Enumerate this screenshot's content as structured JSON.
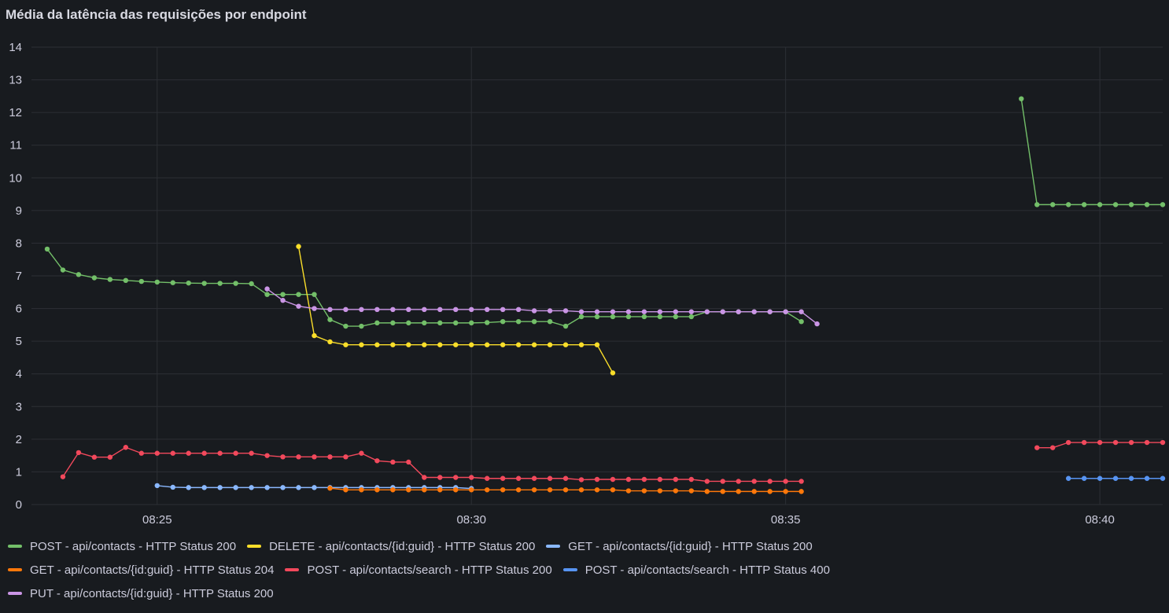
{
  "panel": {
    "title": "Média da latência das requisições por endpoint"
  },
  "chart_data": {
    "type": "line",
    "title": "Média da latência das requisições por endpoint",
    "xlabel": "",
    "ylabel": "",
    "x_unit": "minutes",
    "xlim": [
      "08:23:00",
      "08:41:00"
    ],
    "ylim": [
      0,
      14
    ],
    "x_ticks": [
      "08:25",
      "08:30",
      "08:35",
      "08:40"
    ],
    "y_ticks": [
      0,
      1,
      2,
      3,
      4,
      5,
      6,
      7,
      8,
      9,
      10,
      11,
      12,
      13,
      14
    ],
    "grid": true,
    "legend_position": "bottom",
    "series": [
      {
        "name": "POST - api/contacts - HTTP Status 200",
        "color": "#73bf69",
        "x": [
          "08:23:15",
          "08:23:30",
          "08:23:45",
          "08:24:00",
          "08:24:15",
          "08:24:30",
          "08:24:45",
          "08:25:00",
          "08:25:15",
          "08:25:30",
          "08:25:45",
          "08:26:00",
          "08:26:15",
          "08:26:30",
          "08:26:45",
          "08:27:00",
          "08:27:15",
          "08:27:30",
          "08:27:45",
          "08:28:00",
          "08:28:15",
          "08:28:30",
          "08:28:45",
          "08:29:00",
          "08:29:15",
          "08:29:30",
          "08:29:45",
          "08:30:00",
          "08:30:15",
          "08:30:30",
          "08:30:45",
          "08:31:00",
          "08:31:15",
          "08:31:30",
          "08:31:45",
          "08:32:00",
          "08:32:15",
          "08:32:30",
          "08:32:45",
          "08:33:00",
          "08:33:15",
          "08:33:30",
          "08:33:45",
          "08:34:00",
          "08:34:15",
          "08:34:30",
          "08:34:45",
          "08:35:00",
          "08:35:15",
          null,
          "08:38:45",
          "08:39:00",
          "08:39:15",
          "08:39:30",
          "08:39:45",
          "08:40:00",
          "08:40:15",
          "08:40:30",
          "08:40:45",
          "08:41:00"
        ],
        "y": [
          7.82,
          7.18,
          7.04,
          6.94,
          6.89,
          6.86,
          6.83,
          6.81,
          6.79,
          6.78,
          6.77,
          6.77,
          6.77,
          6.76,
          6.43,
          6.43,
          6.43,
          6.43,
          5.66,
          5.46,
          5.46,
          5.56,
          5.56,
          5.56,
          5.56,
          5.56,
          5.56,
          5.56,
          5.57,
          5.6,
          5.6,
          5.6,
          5.6,
          5.46,
          5.75,
          5.75,
          5.75,
          5.75,
          5.75,
          5.75,
          5.75,
          5.75,
          5.9,
          5.9,
          5.9,
          5.9,
          5.9,
          5.9,
          5.6,
          null,
          12.42,
          9.18,
          9.18,
          9.18,
          9.18,
          9.18,
          9.18,
          9.18,
          9.18,
          9.18
        ]
      },
      {
        "name": "DELETE - api/contacts/{id:guid} - HTTP Status 200",
        "color": "#fade2a",
        "x": [
          "08:27:15",
          "08:27:30",
          "08:27:45",
          "08:28:00",
          "08:28:15",
          "08:28:30",
          "08:28:45",
          "08:29:00",
          "08:29:15",
          "08:29:30",
          "08:29:45",
          "08:30:00",
          "08:30:15",
          "08:30:30",
          "08:30:45",
          "08:31:00",
          "08:31:15",
          "08:31:30",
          "08:31:45",
          "08:32:00",
          "08:32:15"
        ],
        "y": [
          7.9,
          5.17,
          4.98,
          4.89,
          4.89,
          4.89,
          4.89,
          4.89,
          4.89,
          4.89,
          4.89,
          4.89,
          4.89,
          4.89,
          4.89,
          4.89,
          4.89,
          4.89,
          4.89,
          4.89,
          4.03
        ]
      },
      {
        "name": "GET - api/contacts/{id:guid} - HTTP Status 200",
        "color": "#8ab8ff",
        "x": [
          "08:25:00",
          "08:25:15",
          "08:25:30",
          "08:25:45",
          "08:26:00",
          "08:26:15",
          "08:26:30",
          "08:26:45",
          "08:27:00",
          "08:27:15",
          "08:27:30",
          "08:27:45",
          "08:28:00",
          "08:28:15",
          "08:28:30",
          "08:28:45",
          "08:29:00",
          "08:29:15",
          "08:29:30",
          "08:29:45",
          "08:30:00"
        ],
        "y": [
          0.58,
          0.53,
          0.52,
          0.52,
          0.52,
          0.52,
          0.52,
          0.52,
          0.52,
          0.52,
          0.52,
          0.52,
          0.52,
          0.52,
          0.52,
          0.52,
          0.52,
          0.52,
          0.52,
          0.52,
          0.49
        ]
      },
      {
        "name": "GET - api/contacts/{id:guid} - HTTP Status 204",
        "color": "#ff780a",
        "x": [
          "08:27:45",
          "08:28:00",
          "08:28:15",
          "08:28:30",
          "08:28:45",
          "08:29:00",
          "08:29:15",
          "08:29:30",
          "08:29:45",
          "08:30:00",
          "08:30:15",
          "08:30:30",
          "08:30:45",
          "08:31:00",
          "08:31:15",
          "08:31:30",
          "08:31:45",
          "08:32:00",
          "08:32:15",
          "08:32:30",
          "08:32:45",
          "08:33:00",
          "08:33:15",
          "08:33:30",
          "08:33:45",
          "08:34:00",
          "08:34:15",
          "08:34:30",
          "08:34:45",
          "08:35:00",
          "08:35:15"
        ],
        "y": [
          0.5,
          0.45,
          0.45,
          0.45,
          0.45,
          0.45,
          0.45,
          0.45,
          0.45,
          0.45,
          0.45,
          0.45,
          0.45,
          0.45,
          0.45,
          0.45,
          0.45,
          0.45,
          0.45,
          0.42,
          0.42,
          0.42,
          0.42,
          0.42,
          0.4,
          0.4,
          0.4,
          0.4,
          0.4,
          0.4,
          0.4
        ]
      },
      {
        "name": "POST - api/contacts/search - HTTP Status 200",
        "color": "#f2495c",
        "x": [
          "08:23:30",
          "08:23:45",
          "08:24:00",
          "08:24:15",
          "08:24:30",
          "08:24:45",
          "08:25:00",
          "08:25:15",
          "08:25:30",
          "08:25:45",
          "08:26:00",
          "08:26:15",
          "08:26:30",
          "08:26:45",
          "08:27:00",
          "08:27:15",
          "08:27:30",
          "08:27:45",
          "08:28:00",
          "08:28:15",
          "08:28:30",
          "08:28:45",
          "08:29:00",
          "08:29:15",
          "08:29:30",
          "08:29:45",
          "08:30:00",
          "08:30:15",
          "08:30:30",
          "08:30:45",
          "08:31:00",
          "08:31:15",
          "08:31:30",
          "08:31:45",
          "08:32:00",
          "08:32:15",
          "08:32:30",
          "08:32:45",
          "08:33:00",
          "08:33:15",
          "08:33:30",
          "08:33:45",
          "08:34:00",
          "08:34:15",
          "08:34:30",
          "08:34:45",
          "08:35:00",
          "08:35:15",
          null,
          "08:39:00",
          "08:39:15",
          "08:39:30",
          "08:39:45",
          "08:40:00",
          "08:40:15",
          "08:40:30",
          "08:40:45",
          "08:41:00"
        ],
        "y": [
          0.85,
          1.59,
          1.45,
          1.45,
          1.75,
          1.57,
          1.57,
          1.57,
          1.57,
          1.57,
          1.57,
          1.57,
          1.57,
          1.5,
          1.46,
          1.46,
          1.46,
          1.46,
          1.46,
          1.57,
          1.34,
          1.3,
          1.3,
          0.83,
          0.83,
          0.83,
          0.83,
          0.8,
          0.8,
          0.8,
          0.8,
          0.8,
          0.8,
          0.76,
          0.77,
          0.77,
          0.77,
          0.77,
          0.77,
          0.77,
          0.77,
          0.71,
          0.71,
          0.71,
          0.71,
          0.71,
          0.71,
          0.71,
          null,
          1.74,
          1.74,
          1.9,
          1.9,
          1.9,
          1.9,
          1.9,
          1.9,
          1.9
        ]
      },
      {
        "name": "POST - api/contacts/search - HTTP Status 400",
        "color": "#5794f2",
        "x": [
          "08:39:30",
          "08:39:45",
          "08:40:00",
          "08:40:15",
          "08:40:30",
          "08:40:45",
          "08:41:00"
        ],
        "y": [
          0.8,
          0.8,
          0.8,
          0.8,
          0.8,
          0.8,
          0.8
        ]
      },
      {
        "name": "PUT - api/contacts/{id:guid} - HTTP Status 200",
        "color": "#ca95e5",
        "x": [
          "08:26:45",
          "08:27:00",
          "08:27:15",
          "08:27:30",
          "08:27:45",
          "08:28:00",
          "08:28:15",
          "08:28:30",
          "08:28:45",
          "08:29:00",
          "08:29:15",
          "08:29:30",
          "08:29:45",
          "08:30:00",
          "08:30:15",
          "08:30:30",
          "08:30:45",
          "08:31:00",
          "08:31:15",
          "08:31:30",
          "08:31:45",
          "08:32:00",
          "08:32:15",
          "08:32:30",
          "08:32:45",
          "08:33:00",
          "08:33:15",
          "08:33:30",
          "08:33:45",
          "08:34:00",
          "08:34:15",
          "08:34:30",
          "08:34:45",
          "08:35:00",
          "08:35:15",
          "08:35:30"
        ],
        "y": [
          6.6,
          6.25,
          6.07,
          6.0,
          5.97,
          5.97,
          5.97,
          5.97,
          5.97,
          5.97,
          5.97,
          5.97,
          5.97,
          5.97,
          5.97,
          5.97,
          5.97,
          5.93,
          5.93,
          5.93,
          5.9,
          5.9,
          5.9,
          5.9,
          5.9,
          5.9,
          5.9,
          5.9,
          5.9,
          5.9,
          5.9,
          5.9,
          5.9,
          5.9,
          5.9,
          5.53
        ]
      }
    ]
  }
}
